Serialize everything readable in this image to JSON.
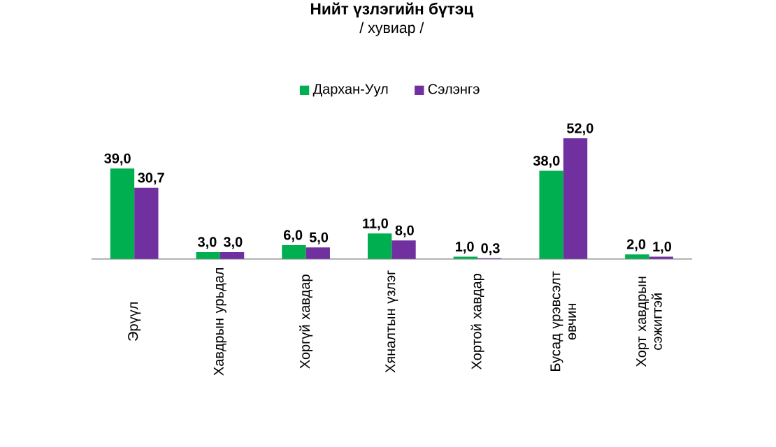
{
  "chart_data": {
    "type": "bar",
    "title": "Нийт үзлэгийн бүтэц",
    "subtitle": "/ хувиар /",
    "categories": [
      "Эрүүл",
      "Хавдрын урьдал",
      "Хоргүй хавдар",
      "Хяналтын үзлэг",
      "Хортой хавдар",
      "Бусад үрэвсэлт өвчин",
      "Хорт хавдрын сэжигтэй"
    ],
    "series": [
      {
        "name": "Дархан-Уул",
        "color": "#00b050",
        "values": [
          39.0,
          3.0,
          6.0,
          11.0,
          1.0,
          38.0,
          2.0
        ],
        "value_labels": [
          "39,0",
          "3,0",
          "6,0",
          "11,0",
          "1,0",
          "38,0",
          "2,0"
        ]
      },
      {
        "name": "Сэлэнгэ",
        "color": "#7030a0",
        "values": [
          30.7,
          3.0,
          5.0,
          8.0,
          0.3,
          52.0,
          1.0
        ],
        "value_labels": [
          "30,7",
          "3,0",
          "5,0",
          "8,0",
          "0,3",
          "52,0",
          "1,0"
        ]
      }
    ],
    "legend": "top"
  }
}
